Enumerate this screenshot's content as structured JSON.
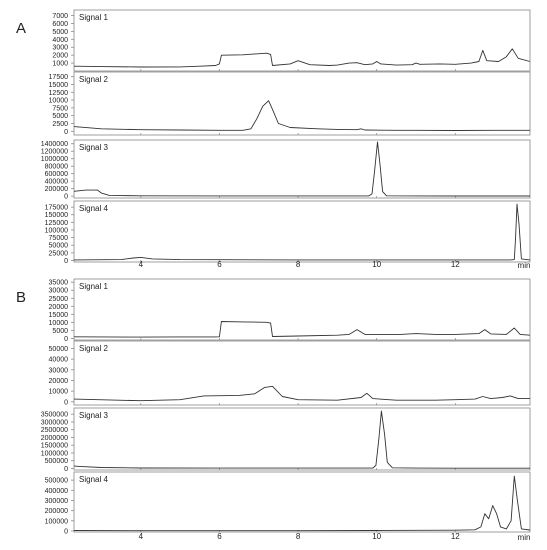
{
  "figure": {
    "panel_labels": [
      "A",
      "B"
    ],
    "x_unit": "min",
    "x_tick_labels": [
      "4",
      "6",
      "8",
      "10",
      "12"
    ]
  },
  "colors": {
    "trace": "#333333",
    "frame": "#888888",
    "text": "#222222",
    "background": "#ffffff"
  },
  "chart_data": [
    {
      "panel": "A",
      "type": "line",
      "x_unit": "min",
      "xlim": [
        2.3,
        13.9
      ],
      "x_ticks": [
        4,
        6,
        8,
        10,
        12
      ],
      "plots": [
        {
          "name": "Signal 1",
          "yticks": [
            1000,
            2000,
            3000,
            4000,
            5000,
            6000,
            7000
          ],
          "ylim": [
            0,
            7700
          ],
          "points": [
            [
              2.3,
              600
            ],
            [
              3.0,
              550
            ],
            [
              4.0,
              500
            ],
            [
              5.0,
              520
            ],
            [
              5.5,
              600
            ],
            [
              5.9,
              700
            ],
            [
              6.0,
              900
            ],
            [
              6.05,
              2000
            ],
            [
              6.6,
              2050
            ],
            [
              7.2,
              2250
            ],
            [
              7.3,
              2100
            ],
            [
              7.35,
              700
            ],
            [
              7.8,
              900
            ],
            [
              8.0,
              1300
            ],
            [
              8.3,
              800
            ],
            [
              8.8,
              700
            ],
            [
              9.0,
              750
            ],
            [
              9.3,
              1000
            ],
            [
              9.5,
              1050
            ],
            [
              9.7,
              800
            ],
            [
              9.9,
              900
            ],
            [
              10.0,
              1200
            ],
            [
              10.1,
              900
            ],
            [
              10.5,
              750
            ],
            [
              10.9,
              800
            ],
            [
              11.0,
              1000
            ],
            [
              11.1,
              850
            ],
            [
              11.6,
              900
            ],
            [
              12.0,
              850
            ],
            [
              12.4,
              1000
            ],
            [
              12.6,
              1200
            ],
            [
              12.7,
              2600
            ],
            [
              12.8,
              1300
            ],
            [
              13.1,
              1200
            ],
            [
              13.3,
              1800
            ],
            [
              13.45,
              2800
            ],
            [
              13.6,
              1600
            ],
            [
              13.9,
              1200
            ]
          ]
        },
        {
          "name": "Signal 2",
          "yticks": [
            0,
            2500,
            5000,
            7500,
            10000,
            12500,
            15000,
            17500
          ],
          "ylim": [
            -1200,
            19000
          ],
          "points": [
            [
              2.3,
              1500
            ],
            [
              3.0,
              800
            ],
            [
              4.0,
              500
            ],
            [
              5.0,
              400
            ],
            [
              6.0,
              300
            ],
            [
              6.6,
              300
            ],
            [
              6.8,
              800
            ],
            [
              6.95,
              4000
            ],
            [
              7.1,
              8000
            ],
            [
              7.25,
              9800
            ],
            [
              7.35,
              7000
            ],
            [
              7.5,
              2500
            ],
            [
              7.8,
              1200
            ],
            [
              8.5,
              800
            ],
            [
              9.0,
              600
            ],
            [
              9.5,
              500
            ],
            [
              9.6,
              800
            ],
            [
              9.7,
              400
            ],
            [
              10.5,
              300
            ],
            [
              11.0,
              300
            ],
            [
              12.0,
              250
            ],
            [
              13.0,
              300
            ],
            [
              13.9,
              300
            ]
          ]
        },
        {
          "name": "Signal 3",
          "yticks": [
            0,
            200000,
            400000,
            600000,
            800000,
            1000000,
            1200000,
            1400000
          ],
          "ylim": [
            -50000,
            1500000
          ],
          "points": [
            [
              2.3,
              130000
            ],
            [
              2.6,
              160000
            ],
            [
              2.9,
              160000
            ],
            [
              3.0,
              80000
            ],
            [
              3.2,
              20000
            ],
            [
              4.0,
              10000
            ],
            [
              6.0,
              5000
            ],
            [
              8.0,
              5000
            ],
            [
              9.8,
              5000
            ],
            [
              9.88,
              60000
            ],
            [
              9.95,
              700000
            ],
            [
              10.02,
              1450000
            ],
            [
              10.08,
              900000
            ],
            [
              10.15,
              120000
            ],
            [
              10.25,
              10000
            ],
            [
              11.0,
              5000
            ],
            [
              12.0,
              3000
            ],
            [
              13.9,
              3000
            ]
          ]
        },
        {
          "name": "Signal 4",
          "yticks": [
            0,
            25000,
            50000,
            75000,
            100000,
            125000,
            150000,
            175000
          ],
          "ylim": [
            -5000,
            195000
          ],
          "points": [
            [
              2.3,
              2000
            ],
            [
              3.5,
              3000
            ],
            [
              3.8,
              8000
            ],
            [
              4.0,
              10000
            ],
            [
              4.3,
              5000
            ],
            [
              5.0,
              3000
            ],
            [
              8.0,
              2000
            ],
            [
              10.0,
              2000
            ],
            [
              12.0,
              2000
            ],
            [
              13.4,
              2000
            ],
            [
              13.5,
              3000
            ],
            [
              13.53,
              70000
            ],
            [
              13.57,
              185000
            ],
            [
              13.62,
              120000
            ],
            [
              13.68,
              5000
            ],
            [
              13.9,
              2000
            ]
          ]
        }
      ]
    },
    {
      "panel": "B",
      "type": "line",
      "x_unit": "min",
      "xlim": [
        2.3,
        13.9
      ],
      "x_ticks": [
        4,
        6,
        8,
        10,
        12
      ],
      "plots": [
        {
          "name": "Signal 1",
          "yticks": [
            0,
            5000,
            10000,
            15000,
            20000,
            25000,
            30000,
            35000
          ],
          "ylim": [
            -1000,
            37000
          ],
          "points": [
            [
              2.3,
              1000
            ],
            [
              4.0,
              800
            ],
            [
              5.0,
              900
            ],
            [
              5.9,
              900
            ],
            [
              6.0,
              1000
            ],
            [
              6.05,
              10500
            ],
            [
              6.6,
              10300
            ],
            [
              7.2,
              10000
            ],
            [
              7.3,
              9500
            ],
            [
              7.35,
              1200
            ],
            [
              8.0,
              1500
            ],
            [
              9.0,
              2000
            ],
            [
              9.3,
              2500
            ],
            [
              9.5,
              5500
            ],
            [
              9.7,
              2500
            ],
            [
              10.0,
              2500
            ],
            [
              10.6,
              2500
            ],
            [
              11.0,
              3000
            ],
            [
              11.5,
              2500
            ],
            [
              12.0,
              2500
            ],
            [
              12.6,
              3000
            ],
            [
              12.75,
              5500
            ],
            [
              12.9,
              2800
            ],
            [
              13.3,
              2500
            ],
            [
              13.5,
              6500
            ],
            [
              13.65,
              2500
            ],
            [
              13.9,
              2000
            ]
          ]
        },
        {
          "name": "Signal 2",
          "yticks": [
            0,
            10000,
            20000,
            30000,
            40000,
            50000
          ],
          "ylim": [
            -3000,
            57000
          ],
          "points": [
            [
              2.3,
              2500
            ],
            [
              4.0,
              1000
            ],
            [
              5.0,
              2000
            ],
            [
              5.6,
              5500
            ],
            [
              6.5,
              6000
            ],
            [
              6.9,
              7500
            ],
            [
              7.15,
              13500
            ],
            [
              7.35,
              14500
            ],
            [
              7.6,
              5000
            ],
            [
              8.0,
              2000
            ],
            [
              9.0,
              1500
            ],
            [
              9.6,
              4000
            ],
            [
              9.75,
              8000
            ],
            [
              9.9,
              3000
            ],
            [
              10.5,
              1500
            ],
            [
              11.5,
              1500
            ],
            [
              12.0,
              2000
            ],
            [
              12.5,
              2500
            ],
            [
              12.7,
              5000
            ],
            [
              12.9,
              3000
            ],
            [
              13.2,
              4000
            ],
            [
              13.4,
              5500
            ],
            [
              13.6,
              3000
            ],
            [
              13.9,
              3000
            ]
          ]
        },
        {
          "name": "Signal 3",
          "yticks": [
            0,
            500000,
            1000000,
            1500000,
            2000000,
            2500000,
            3000000,
            3500000
          ],
          "ylim": [
            -100000,
            3900000
          ],
          "points": [
            [
              2.3,
              150000
            ],
            [
              2.5,
              120000
            ],
            [
              3.0,
              60000
            ],
            [
              4.0,
              30000
            ],
            [
              6.0,
              20000
            ],
            [
              8.0,
              20000
            ],
            [
              9.9,
              20000
            ],
            [
              9.98,
              200000
            ],
            [
              10.05,
              1800000
            ],
            [
              10.12,
              3700000
            ],
            [
              10.2,
              2200000
            ],
            [
              10.27,
              400000
            ],
            [
              10.4,
              40000
            ],
            [
              11.0,
              20000
            ],
            [
              12.0,
              15000
            ],
            [
              13.9,
              15000
            ]
          ]
        },
        {
          "name": "Signal 4",
          "yticks": [
            0,
            100000,
            200000,
            300000,
            400000,
            500000
          ],
          "ylim": [
            -10000,
            580000
          ],
          "points": [
            [
              2.3,
              5000
            ],
            [
              4.0,
              3000
            ],
            [
              8.0,
              3000
            ],
            [
              10.0,
              5000
            ],
            [
              12.0,
              8000
            ],
            [
              12.5,
              12000
            ],
            [
              12.65,
              40000
            ],
            [
              12.75,
              170000
            ],
            [
              12.85,
              120000
            ],
            [
              12.95,
              250000
            ],
            [
              13.05,
              170000
            ],
            [
              13.15,
              40000
            ],
            [
              13.3,
              20000
            ],
            [
              13.42,
              100000
            ],
            [
              13.5,
              540000
            ],
            [
              13.58,
              300000
            ],
            [
              13.68,
              20000
            ],
            [
              13.9,
              10000
            ]
          ]
        }
      ]
    }
  ]
}
